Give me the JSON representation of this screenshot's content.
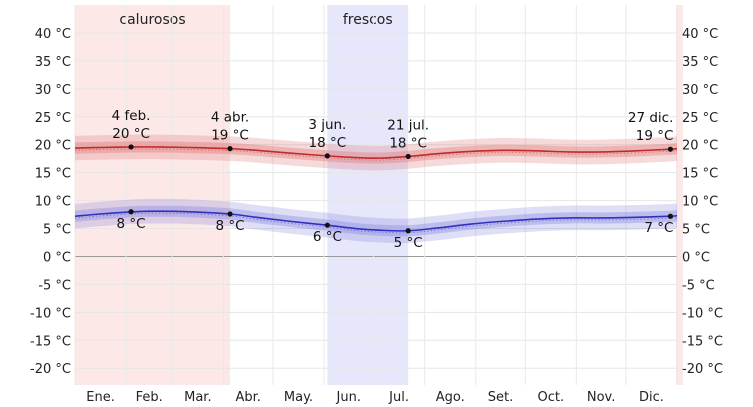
{
  "chart_data": {
    "type": "line",
    "y_unit": "°C",
    "ylim": [
      -23,
      45
    ],
    "y_ticks": [
      40,
      35,
      30,
      25,
      20,
      15,
      10,
      5,
      0,
      -5,
      -10,
      -15,
      -20
    ],
    "y_tick_labels": [
      "40 °C",
      "35 °C",
      "30 °C",
      "25 °C",
      "20 °C",
      "15 °C",
      "10 °C",
      "5 °C",
      "0 °C",
      "-5 °C",
      "-10 °C",
      "-15 °C",
      "-20 °C"
    ],
    "months": [
      "Ene.",
      "Feb.",
      "Mar.",
      "Abr.",
      "May.",
      "Jun.",
      "Jul.",
      "Ago.",
      "Set.",
      "Oct.",
      "Nov.",
      "Dic."
    ],
    "seasons": [
      {
        "label": "calurosos",
        "start_day": 0,
        "end_day": 94,
        "color": "#fde8e8"
      },
      {
        "label": "frescos",
        "start_day": 153,
        "end_day": 202,
        "color": "#e7e7fb"
      }
    ],
    "series": [
      {
        "name": "high",
        "color": "#c02a2a",
        "band_color": "#e07a7a",
        "days": [
          0,
          15,
          35,
          50,
          70,
          94,
          110,
          130,
          153,
          170,
          185,
          202,
          220,
          240,
          260,
          280,
          300,
          320,
          340,
          361,
          365
        ],
        "values": [
          19.4,
          19.5,
          19.6,
          19.6,
          19.5,
          19.3,
          19.0,
          18.5,
          18.0,
          17.7,
          17.6,
          17.9,
          18.4,
          18.8,
          19.0,
          18.9,
          18.7,
          18.7,
          18.9,
          19.2,
          19.3
        ]
      },
      {
        "name": "low",
        "color": "#3030c0",
        "band_color": "#8a8ae0",
        "days": [
          0,
          15,
          35,
          50,
          70,
          94,
          110,
          130,
          153,
          170,
          185,
          202,
          220,
          240,
          260,
          280,
          300,
          320,
          340,
          361,
          365
        ],
        "values": [
          7.2,
          7.6,
          8.0,
          8.1,
          8.0,
          7.6,
          7.0,
          6.3,
          5.6,
          5.0,
          4.7,
          4.6,
          5.1,
          5.8,
          6.3,
          6.7,
          6.9,
          6.9,
          7.0,
          7.2,
          7.3
        ]
      }
    ],
    "annotations": [
      {
        "series": "high",
        "day": 34,
        "value": 19.6,
        "date": "4 feb.",
        "label": "20 °C"
      },
      {
        "series": "high",
        "day": 94,
        "value": 19.3,
        "date": "4 abr.",
        "label": "19 °C"
      },
      {
        "series": "high",
        "day": 153,
        "value": 18.0,
        "date": "3 jun.",
        "label": "18 °C"
      },
      {
        "series": "high",
        "day": 202,
        "value": 17.9,
        "date": "21 jul.",
        "label": "18 °C"
      },
      {
        "series": "high",
        "day": 361,
        "value": 19.2,
        "date": "27 dic.",
        "label": "19 °C"
      },
      {
        "series": "low",
        "day": 34,
        "value": 8.0,
        "label": "8 °C"
      },
      {
        "series": "low",
        "day": 94,
        "value": 7.6,
        "label": "8 °C"
      },
      {
        "series": "low",
        "day": 153,
        "value": 5.6,
        "label": "6 °C"
      },
      {
        "series": "low",
        "day": 202,
        "value": 4.6,
        "label": "5 °C"
      },
      {
        "series": "low",
        "day": 361,
        "value": 7.2,
        "label": "7 °C"
      }
    ]
  }
}
